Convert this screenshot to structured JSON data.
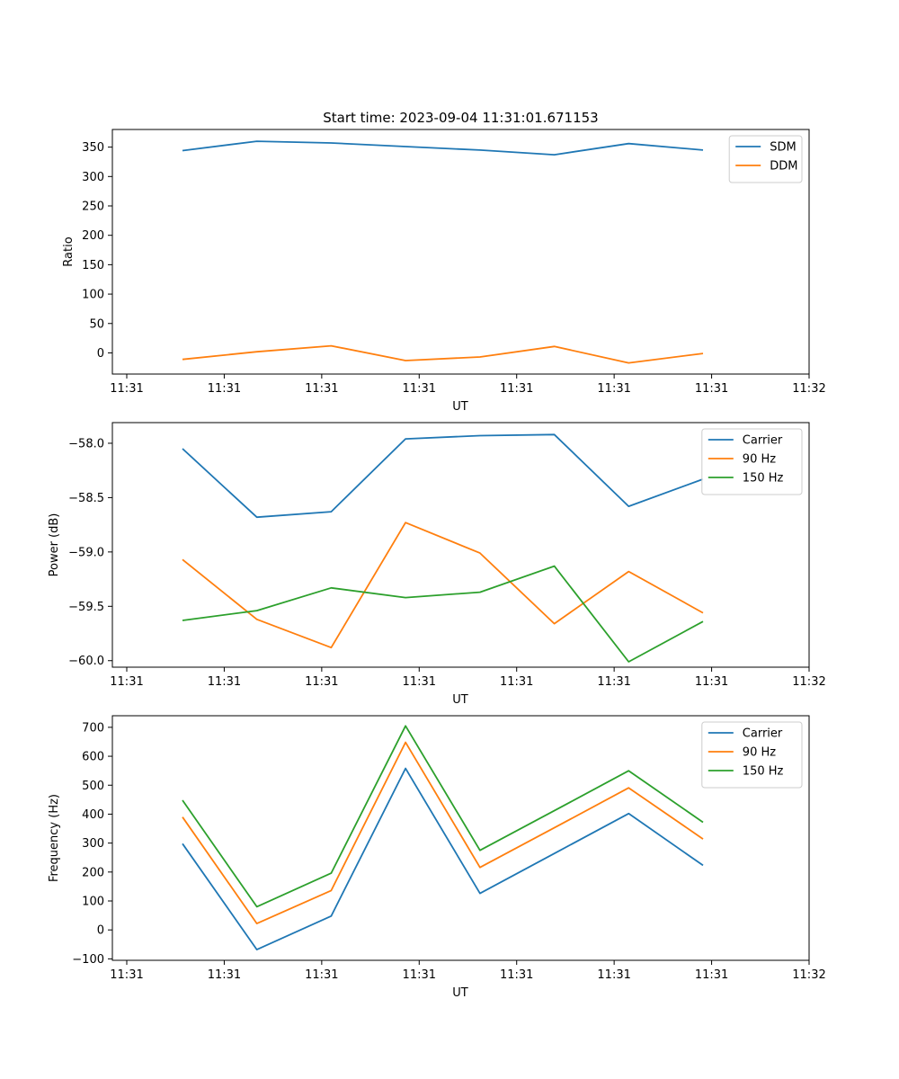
{
  "figure": {
    "title": "Start time: 2023-09-04 11:31:01.671153"
  },
  "chart_data": [
    {
      "type": "line",
      "title": "Start time: 2023-09-04 11:31:01.671153",
      "xlabel": "UT",
      "ylabel": "Ratio",
      "x_tick_labels": [
        "11:31",
        "11:31",
        "11:31",
        "11:31",
        "11:31",
        "11:31",
        "11:31"
      ],
      "x_tick_end_label": "11:32",
      "ylim": [
        -36,
        380
      ],
      "y_ticks": [
        0,
        50,
        100,
        150,
        200,
        250,
        300,
        350
      ],
      "y_tick_labels": [
        "0",
        "50",
        "100",
        "150",
        "200",
        "250",
        "300",
        "350"
      ],
      "x": [
        0.5,
        1.15,
        1.8,
        2.45,
        3.1,
        3.75,
        4.4,
        5.05
      ],
      "legend_position": "top-right",
      "series": [
        {
          "name": "SDM",
          "color": "#1f77b4",
          "values": [
            344,
            360,
            357,
            351,
            345,
            337,
            356,
            345
          ]
        },
        {
          "name": "DDM",
          "color": "#ff7f0e",
          "values": [
            -11,
            2,
            12,
            -13,
            -7,
            11,
            -17,
            -1
          ]
        }
      ]
    },
    {
      "type": "line",
      "title": "",
      "xlabel": "UT",
      "ylabel": "Power (dB)",
      "x_tick_labels": [
        "11:31",
        "11:31",
        "11:31",
        "11:31",
        "11:31",
        "11:31",
        "11:31"
      ],
      "x_tick_end_label": "11:32",
      "ylim": [
        -60.06,
        -57.81
      ],
      "y_ticks": [
        -60.0,
        -59.5,
        -59.0,
        -58.5,
        -58.0
      ],
      "y_tick_labels": [
        "−60.0",
        "−59.5",
        "−59.0",
        "−58.5",
        "−58.0"
      ],
      "x": [
        0.5,
        1.15,
        1.8,
        2.45,
        3.1,
        3.75,
        4.4,
        5.05
      ],
      "legend_position": "top-right",
      "series": [
        {
          "name": "Carrier",
          "color": "#1f77b4",
          "values": [
            -58.05,
            -58.68,
            -58.63,
            -57.96,
            -57.93,
            -57.92,
            -58.58,
            -58.33
          ]
        },
        {
          "name": "90 Hz",
          "color": "#ff7f0e",
          "values": [
            -59.07,
            -59.62,
            -59.88,
            -58.73,
            -59.01,
            -59.66,
            -59.18,
            -59.56
          ]
        },
        {
          "name": "150 Hz",
          "color": "#2ca02c",
          "values": [
            -59.63,
            -59.54,
            -59.33,
            -59.42,
            -59.37,
            -59.13,
            -60.01,
            -59.64
          ]
        }
      ]
    },
    {
      "type": "line",
      "title": "",
      "xlabel": "UT",
      "ylabel": "Frequency (Hz)",
      "x_tick_labels": [
        "11:31",
        "11:31",
        "11:31",
        "11:31",
        "11:31",
        "11:31",
        "11:31"
      ],
      "x_tick_end_label": "11:32",
      "ylim": [
        -105,
        740
      ],
      "y_ticks": [
        -100,
        0,
        100,
        200,
        300,
        400,
        500,
        600,
        700
      ],
      "y_tick_labels": [
        "−100",
        "0",
        "100",
        "200",
        "300",
        "400",
        "500",
        "600",
        "700"
      ],
      "x": [
        0.5,
        1.15,
        1.8,
        2.45,
        3.1,
        3.75,
        4.4,
        5.05
      ],
      "legend_position": "top-right",
      "series": [
        {
          "name": "Carrier",
          "color": "#1f77b4",
          "values": [
            298,
            -68,
            48,
            558,
            126,
            264,
            402,
            223
          ]
        },
        {
          "name": "90 Hz",
          "color": "#ff7f0e",
          "values": [
            390,
            22,
            136,
            648,
            216,
            353,
            491,
            314
          ]
        },
        {
          "name": "150 Hz",
          "color": "#2ca02c",
          "values": [
            448,
            80,
            196,
            705,
            275,
            412,
            550,
            372
          ]
        }
      ]
    }
  ]
}
